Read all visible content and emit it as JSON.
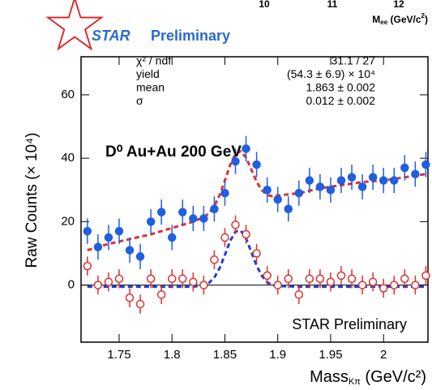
{
  "cropped_header": {
    "ticks": [
      "10",
      "11",
      "12"
    ],
    "axis_label": {
      "main": "M",
      "sub": "ee",
      "unit": " (GeV/c",
      "sup": "2",
      "end": ")"
    }
  },
  "logo": {
    "name": "STAR",
    "text": "Preliminary"
  },
  "chart_data": {
    "type": "scatter",
    "x_label": {
      "main": "Mass",
      "sub": "Kπ",
      "unit": " (GeV/c²)"
    },
    "y_label": "Raw Counts (× 10⁴)",
    "annotation": "D⁰ Au+Au 200 GeV",
    "watermark": "STAR Preliminary",
    "fit_box": [
      [
        "χ² / ndf",
        "31.1 / 27"
      ],
      [
        "yield",
        "(54.3 ± 6.9) × 10⁴"
      ],
      [
        "mean",
        "1.863 ± 0.002"
      ],
      [
        "σ",
        "0.012 ± 0.002"
      ]
    ],
    "xlim": [
      1.714,
      2.042
    ],
    "ylim": [
      -18,
      72
    ],
    "xticks": [
      1.75,
      1.8,
      1.85,
      1.9,
      1.95,
      2
    ],
    "yticks": [
      0,
      20,
      40,
      60
    ],
    "reference_line": 0,
    "x": [
      1.72,
      1.73,
      1.74,
      1.75,
      1.76,
      1.77,
      1.78,
      1.79,
      1.8,
      1.81,
      1.82,
      1.83,
      1.84,
      1.85,
      1.86,
      1.87,
      1.88,
      1.89,
      1.9,
      1.91,
      1.92,
      1.93,
      1.94,
      1.95,
      1.96,
      1.97,
      1.98,
      1.99,
      2.0,
      2.01,
      2.02,
      2.03,
      2.04
    ],
    "series": [
      {
        "color": "#1f5fe0",
        "marker": "filled",
        "error": 4,
        "values": [
          17,
          12,
          15,
          17,
          11,
          9,
          20,
          23,
          15,
          23,
          21,
          21,
          24,
          29,
          39,
          43,
          38,
          30,
          27,
          24,
          29,
          33,
          31,
          30,
          33,
          34,
          31,
          34,
          33,
          33,
          37,
          35,
          38
        ]
      },
      {
        "color": "#e03030",
        "marker": "open",
        "error": 3,
        "values": [
          6,
          0,
          1,
          2,
          -4,
          -6,
          2,
          -3,
          2,
          2,
          1,
          0,
          8,
          15,
          19,
          16,
          10,
          3,
          0,
          2,
          -3,
          2,
          2,
          1,
          3,
          2,
          0,
          1,
          -1,
          0,
          2,
          0,
          3
        ]
      }
    ],
    "fits": [
      {
        "color": "#e03030",
        "x": [
          1.72,
          1.74,
          1.76,
          1.78,
          1.8,
          1.82,
          1.83,
          1.835,
          1.84,
          1.845,
          1.85,
          1.855,
          1.86,
          1.865,
          1.87,
          1.875,
          1.88,
          1.885,
          1.89,
          1.895,
          1.9,
          1.92,
          1.94,
          1.96,
          1.98,
          2.0,
          2.02,
          2.04
        ],
        "values": [
          11,
          13,
          14.5,
          16,
          18,
          20,
          21.4,
          22.7,
          24.9,
          28.3,
          33,
          37.9,
          41.4,
          42.2,
          40.2,
          36.4,
          32.6,
          29.9,
          28.4,
          28,
          28.2,
          29,
          30.5,
          31.5,
          32.5,
          33,
          34,
          35
        ]
      },
      {
        "color": "#1f3fd0",
        "x": [
          1.72,
          1.74,
          1.76,
          1.78,
          1.8,
          1.82,
          1.83,
          1.835,
          1.84,
          1.845,
          1.85,
          1.855,
          1.86,
          1.865,
          1.87,
          1.875,
          1.88,
          1.885,
          1.89,
          1.895,
          1.9,
          1.92,
          1.94,
          1.96,
          1.98,
          2.0,
          2.02,
          2.04
        ],
        "values": [
          -0.5,
          -0.5,
          -0.5,
          -0.5,
          -0.5,
          -0.5,
          -0.1,
          0.7,
          2.4,
          5.3,
          9.5,
          13.9,
          16.9,
          17.2,
          14.7,
          10.4,
          6.1,
          2.9,
          0.9,
          0,
          -0.3,
          -0.5,
          -0.5,
          -0.5,
          -0.5,
          -0.5,
          -0.5,
          -0.5
        ]
      }
    ]
  }
}
